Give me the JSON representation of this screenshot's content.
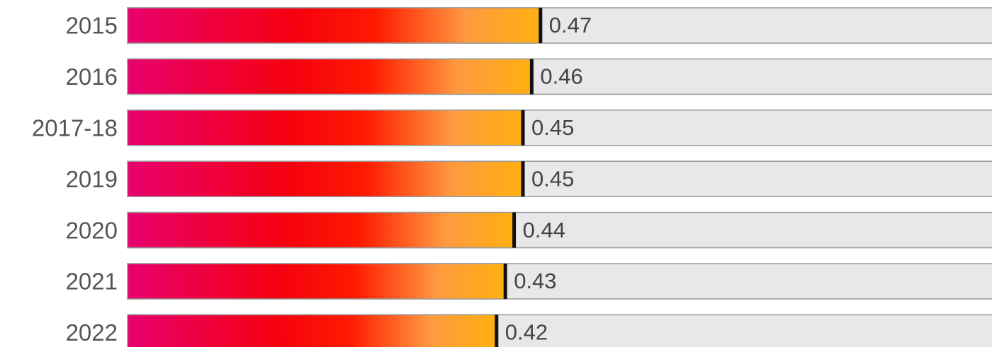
{
  "chart_data": {
    "type": "bar",
    "orientation": "horizontal",
    "categories": [
      "2015",
      "2016",
      "2017-18",
      "2019",
      "2020",
      "2021",
      "2022"
    ],
    "values": [
      0.47,
      0.46,
      0.45,
      0.45,
      0.44,
      0.43,
      0.42
    ],
    "xlim": [
      0,
      1
    ],
    "gradient": [
      "#e8006e",
      "#f50010",
      "#ff1a00",
      "#ff9a40",
      "#ffb010"
    ],
    "track_color": "#e8e8e8"
  }
}
